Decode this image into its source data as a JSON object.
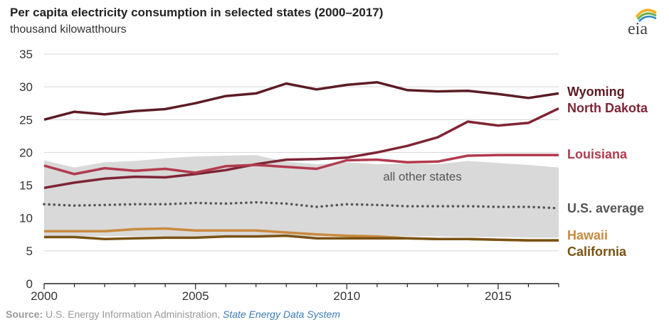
{
  "title": "Per capita electricity consumption in selected states (2000–2017)",
  "subtitle": "thousand kilowatthours",
  "logo_text": "eia",
  "source": {
    "label": "Source:",
    "text": " U.S. Energy Information Administration, ",
    "link": "State Energy Data System"
  },
  "colors": {
    "wyoming": "#5c1c24",
    "north_dakota": "#7e2535",
    "louisiana": "#b23a4e",
    "us_average": "#555555",
    "hawaii": "#c98a3f",
    "california": "#7a5213",
    "band": "#d9d9d9",
    "band_label": "#555555"
  },
  "chart_data": {
    "type": "line",
    "title": "Per capita electricity consumption in selected states (2000–2017)",
    "ylabel": "thousand kilowatthours",
    "xlim": [
      2000,
      2017
    ],
    "ylim": [
      0,
      35
    ],
    "yticks": [
      0,
      5,
      10,
      15,
      20,
      25,
      30,
      35
    ],
    "xticks": [
      2000,
      2005,
      2010,
      2015
    ],
    "x": [
      2000,
      2001,
      2002,
      2003,
      2004,
      2005,
      2006,
      2007,
      2008,
      2009,
      2010,
      2011,
      2012,
      2013,
      2014,
      2015,
      2016,
      2017
    ],
    "band": {
      "name": "all other states",
      "upper": [
        18.8,
        17.7,
        18.5,
        18.7,
        19.1,
        19.4,
        19.5,
        19.6,
        18.6,
        18.2,
        18.5,
        18.2,
        18.3,
        18.2,
        18.7,
        18.4,
        18.1,
        17.7
      ],
      "lower": [
        7.2,
        7.2,
        7.2,
        7.2,
        7.2,
        7.2,
        7.2,
        7.2,
        7.2,
        7.2,
        7.2,
        7.2,
        7.2,
        7.2,
        7.1,
        7.1,
        7.0,
        7.0
      ]
    },
    "series": [
      {
        "name": "Wyoming",
        "key": "wyoming",
        "style": "solid",
        "values": [
          25.0,
          26.2,
          25.8,
          26.3,
          26.6,
          27.5,
          28.6,
          29.0,
          30.5,
          29.6,
          30.3,
          30.7,
          29.5,
          29.3,
          29.4,
          28.9,
          28.3,
          29.0
        ]
      },
      {
        "name": "North Dakota",
        "key": "north_dakota",
        "style": "solid",
        "values": [
          14.6,
          15.4,
          16.0,
          16.3,
          16.2,
          16.7,
          17.3,
          18.2,
          18.9,
          19.0,
          19.2,
          20.0,
          21.0,
          22.3,
          24.7,
          24.1,
          24.5,
          26.7
        ]
      },
      {
        "name": "Louisiana",
        "key": "louisiana",
        "style": "solid",
        "values": [
          18.0,
          16.7,
          17.6,
          17.2,
          17.5,
          16.9,
          17.9,
          18.1,
          17.8,
          17.5,
          18.8,
          18.9,
          18.5,
          18.6,
          19.5,
          19.6,
          19.6,
          19.6
        ]
      },
      {
        "name": "U.S. average",
        "key": "us_average",
        "style": "dotted",
        "values": [
          12.1,
          11.9,
          12.0,
          12.1,
          12.1,
          12.3,
          12.2,
          12.4,
          12.2,
          11.7,
          12.1,
          12.0,
          11.8,
          11.8,
          11.8,
          11.7,
          11.7,
          11.5
        ]
      },
      {
        "name": "Hawaii",
        "key": "hawaii",
        "style": "solid",
        "values": [
          8.0,
          8.0,
          8.0,
          8.3,
          8.4,
          8.1,
          8.1,
          8.1,
          7.8,
          7.5,
          7.3,
          7.2,
          6.9,
          6.8,
          6.8,
          6.7,
          6.6,
          6.6
        ]
      },
      {
        "name": "California",
        "key": "california",
        "style": "solid",
        "values": [
          7.1,
          7.1,
          6.8,
          6.9,
          7.0,
          7.0,
          7.2,
          7.2,
          7.3,
          6.9,
          6.9,
          6.9,
          6.9,
          6.8,
          6.8,
          6.7,
          6.6,
          6.6
        ]
      }
    ],
    "legend_labels": [
      {
        "name": "Wyoming",
        "key": "wyoming"
      },
      {
        "name": "North Dakota",
        "key": "north_dakota"
      },
      {
        "name": "Louisiana",
        "key": "louisiana"
      },
      {
        "name": "U.S. average",
        "key": "us_average"
      },
      {
        "name": "Hawaii",
        "key": "hawaii"
      },
      {
        "name": "California",
        "key": "california"
      }
    ]
  }
}
